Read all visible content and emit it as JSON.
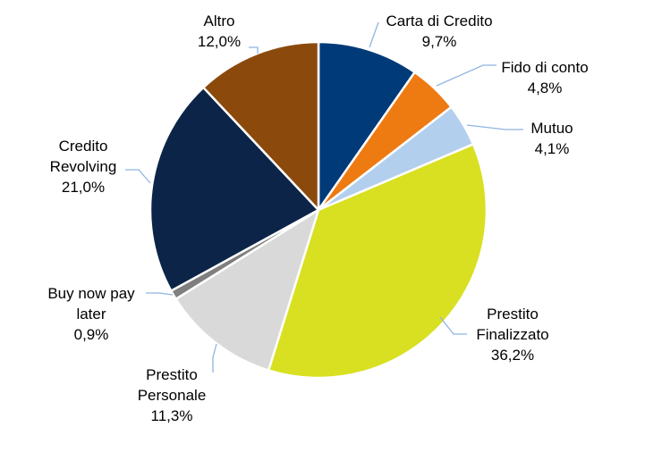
{
  "chart_data": {
    "type": "pie",
    "slices": [
      {
        "label": "Carta di Credito",
        "label_lines": [
          "Carta di Credito"
        ],
        "value": 9.7,
        "value_label": "9,7%",
        "color": "#003a78"
      },
      {
        "label": "Fido di conto",
        "label_lines": [
          "Fido di conto"
        ],
        "value": 4.8,
        "value_label": "4,8%",
        "color": "#ee7a12"
      },
      {
        "label": "Mutuo",
        "label_lines": [
          "Mutuo"
        ],
        "value": 4.1,
        "value_label": "4,1%",
        "color": "#b3cfee"
      },
      {
        "label": "Prestito Finalizzato",
        "label_lines": [
          "Prestito",
          "Finalizzato"
        ],
        "value": 36.2,
        "value_label": "36,2%",
        "color": "#d8e021"
      },
      {
        "label": "Prestito Personale",
        "label_lines": [
          "Prestito",
          "Personale"
        ],
        "value": 11.3,
        "value_label": "11,3%",
        "color": "#d9d9d9"
      },
      {
        "label": "Buy now pay later",
        "label_lines": [
          "Buy now pay",
          "later"
        ],
        "value": 0.9,
        "value_label": "0,9%",
        "color": "#7f7f7f"
      },
      {
        "label": "Credito Revolving",
        "label_lines": [
          "Credito",
          "Revolving"
        ],
        "value": 21.0,
        "value_label": "21,0%",
        "color": "#0c2448"
      },
      {
        "label": "Altro",
        "label_lines": [
          "Altro"
        ],
        "value": 12.0,
        "value_label": "12,0%",
        "color": "#8b4a0b"
      }
    ],
    "start_angle": "12 o'clock",
    "direction": "clockwise",
    "leader_line_color": "#8fb4e3",
    "legend": "none"
  }
}
